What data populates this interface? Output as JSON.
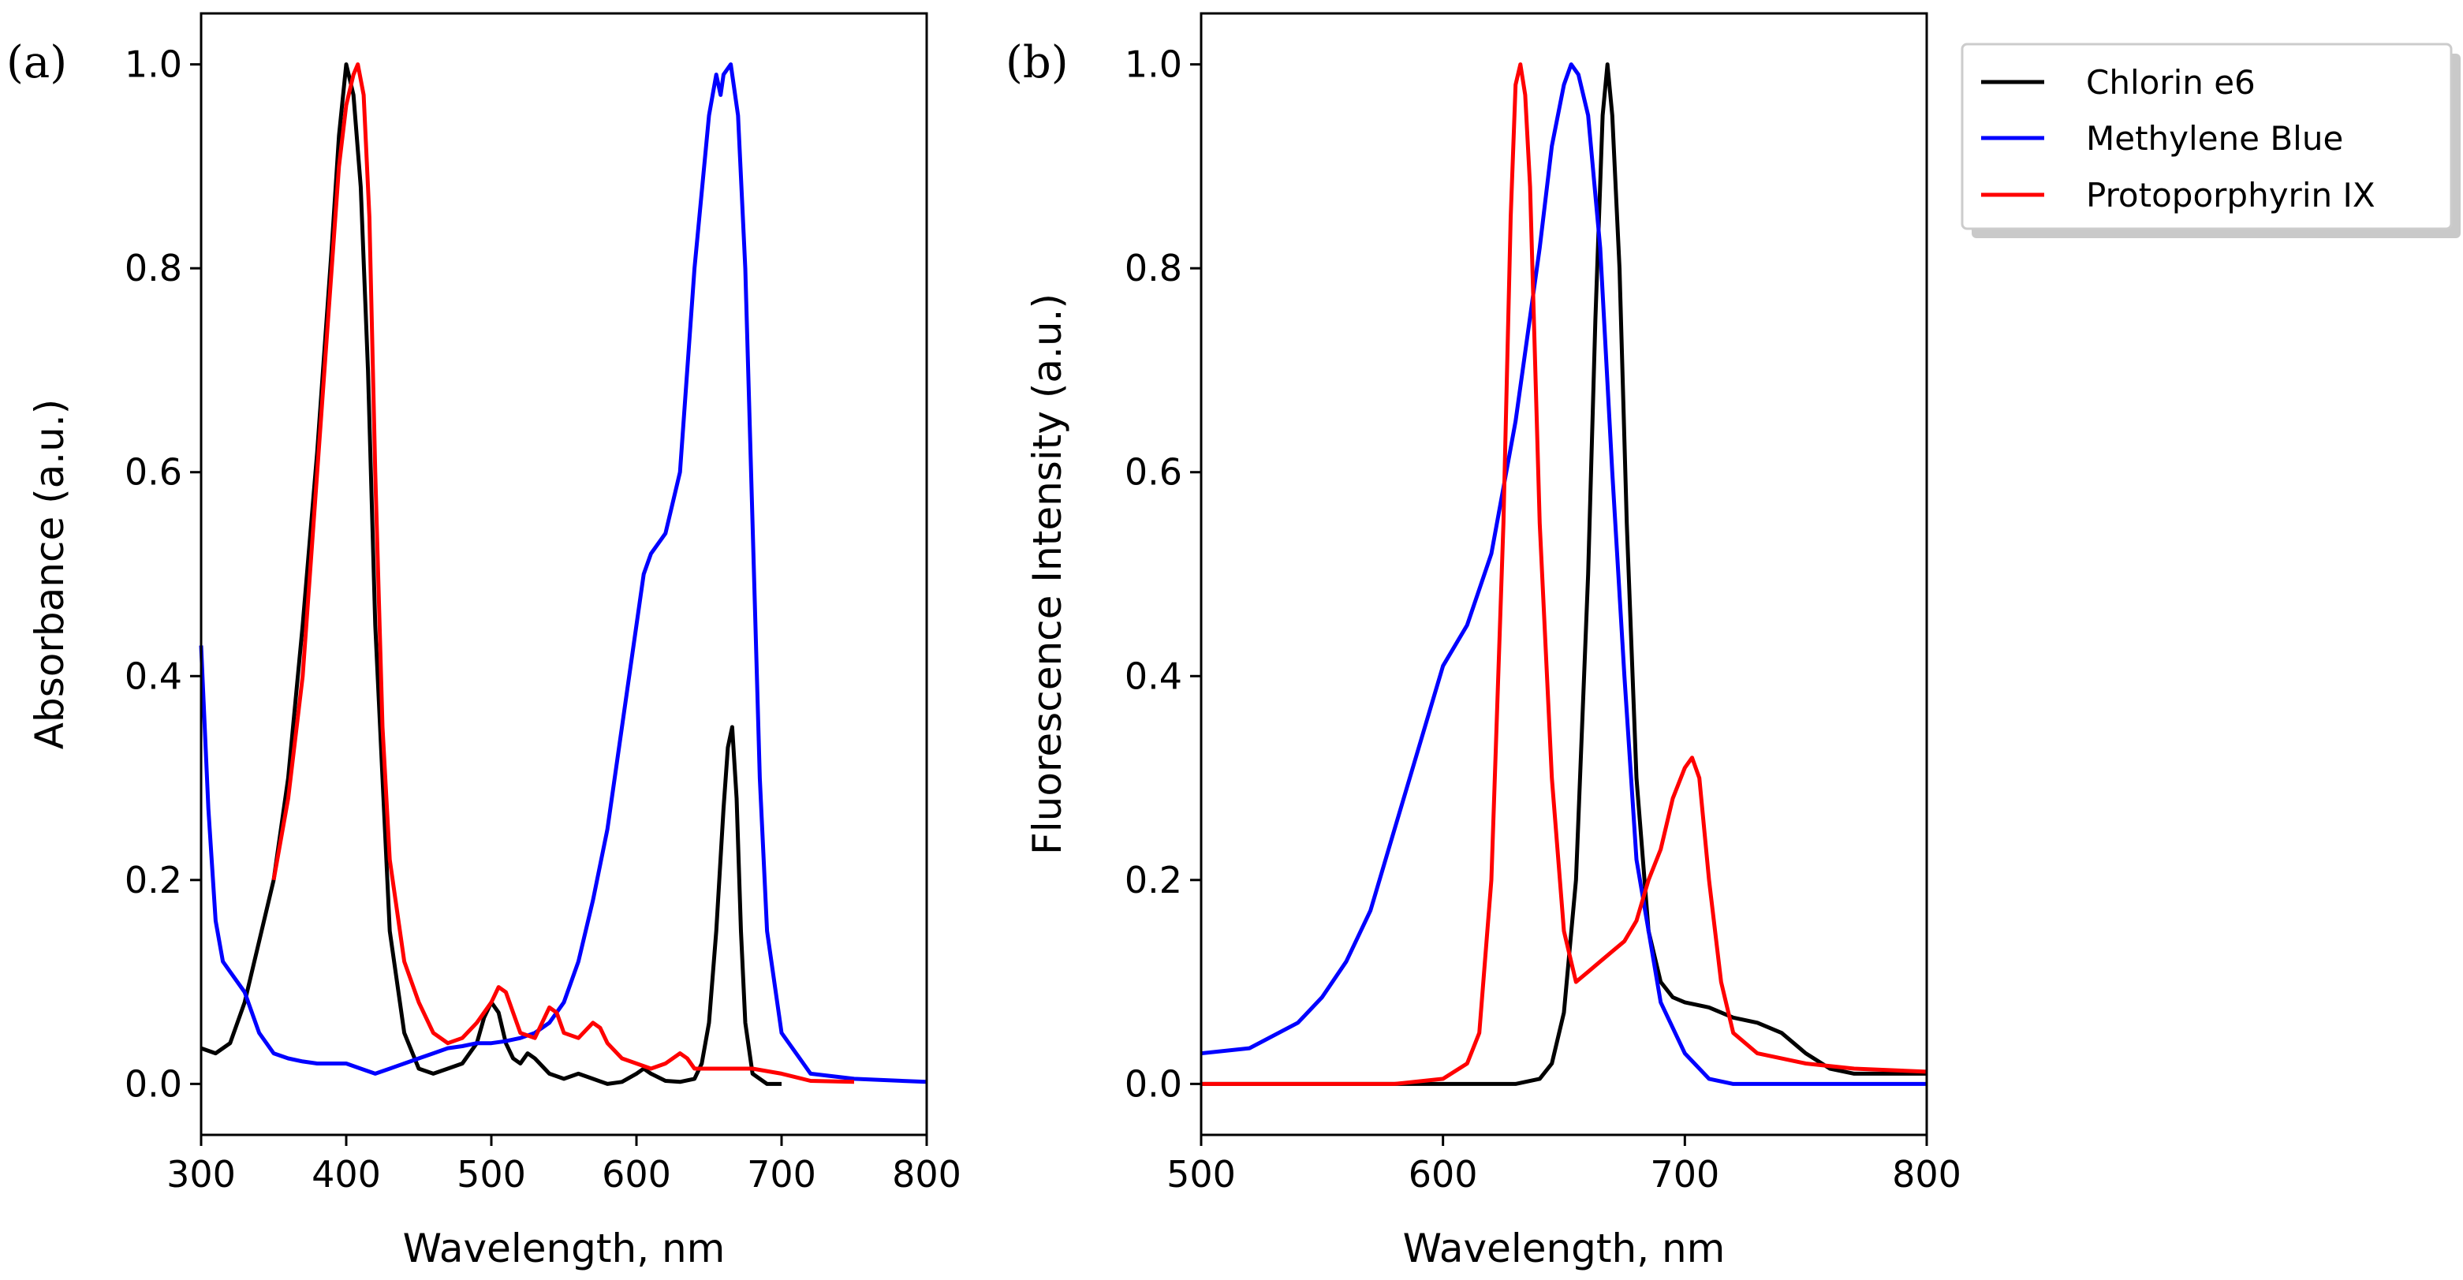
{
  "legend": {
    "entries": [
      {
        "label": "Chlorin e6",
        "color": "#000000"
      },
      {
        "label": "Methylene Blue",
        "color": "#0000ff"
      },
      {
        "label": "Protoporphyrin IX",
        "color": "#ff0000"
      }
    ]
  },
  "chart_data": [
    {
      "type": "line",
      "panel_label": "(a)",
      "xlabel": "Wavelength, nm",
      "ylabel": "Absorbance (a.u.)",
      "xlim": [
        300,
        800
      ],
      "ylim": [
        -0.05,
        1.05
      ],
      "xticks": [
        300,
        400,
        500,
        600,
        700,
        800
      ],
      "yticks": [
        0.0,
        0.2,
        0.4,
        0.6,
        0.8,
        1.0
      ],
      "xtick_labels": [
        "300",
        "400",
        "500",
        "600",
        "700",
        "800"
      ],
      "ytick_labels": [
        "0.0",
        "0.2",
        "0.4",
        "0.6",
        "0.8",
        "1.0"
      ],
      "series": [
        {
          "name": "Chlorin e6",
          "color": "#000000",
          "x": [
            300,
            310,
            320,
            330,
            340,
            350,
            360,
            370,
            380,
            390,
            395,
            400,
            405,
            410,
            415,
            420,
            430,
            440,
            450,
            460,
            470,
            480,
            490,
            495,
            500,
            505,
            510,
            515,
            520,
            525,
            530,
            540,
            550,
            560,
            570,
            580,
            590,
            600,
            605,
            610,
            620,
            630,
            640,
            645,
            650,
            655,
            660,
            663,
            666,
            669,
            672,
            675,
            680,
            690,
            700
          ],
          "y": [
            0.035,
            0.03,
            0.04,
            0.08,
            0.14,
            0.2,
            0.3,
            0.45,
            0.62,
            0.82,
            0.93,
            1.0,
            0.97,
            0.88,
            0.7,
            0.45,
            0.15,
            0.05,
            0.015,
            0.01,
            0.015,
            0.02,
            0.04,
            0.065,
            0.08,
            0.07,
            0.04,
            0.025,
            0.02,
            0.03,
            0.025,
            0.01,
            0.005,
            0.01,
            0.005,
            0.0,
            0.002,
            0.01,
            0.015,
            0.01,
            0.003,
            0.002,
            0.005,
            0.02,
            0.06,
            0.15,
            0.27,
            0.33,
            0.35,
            0.28,
            0.15,
            0.06,
            0.01,
            0.0,
            0.0
          ]
        },
        {
          "name": "Methylene Blue",
          "color": "#0000ff",
          "x": [
            300,
            305,
            310,
            315,
            320,
            330,
            340,
            350,
            360,
            370,
            380,
            390,
            400,
            410,
            420,
            430,
            440,
            450,
            460,
            470,
            480,
            490,
            500,
            510,
            520,
            530,
            540,
            550,
            560,
            570,
            580,
            590,
            600,
            605,
            610,
            620,
            630,
            640,
            650,
            655,
            658,
            660,
            665,
            670,
            675,
            680,
            685,
            690,
            700,
            720,
            750,
            800
          ],
          "y": [
            0.43,
            0.27,
            0.16,
            0.12,
            0.11,
            0.09,
            0.05,
            0.03,
            0.025,
            0.022,
            0.02,
            0.02,
            0.02,
            0.015,
            0.01,
            0.015,
            0.02,
            0.025,
            0.03,
            0.035,
            0.037,
            0.04,
            0.04,
            0.042,
            0.045,
            0.05,
            0.06,
            0.08,
            0.12,
            0.18,
            0.25,
            0.35,
            0.45,
            0.5,
            0.52,
            0.54,
            0.6,
            0.8,
            0.95,
            0.99,
            0.97,
            0.99,
            1.0,
            0.95,
            0.8,
            0.55,
            0.3,
            0.15,
            0.05,
            0.01,
            0.005,
            0.002
          ]
        },
        {
          "name": "Protoporphyrin IX",
          "color": "#ff0000",
          "x": [
            350,
            360,
            370,
            380,
            390,
            395,
            400,
            405,
            408,
            412,
            416,
            420,
            425,
            430,
            440,
            450,
            460,
            470,
            480,
            490,
            500,
            505,
            510,
            515,
            520,
            530,
            540,
            545,
            550,
            560,
            570,
            575,
            580,
            590,
            600,
            610,
            620,
            630,
            635,
            640,
            650,
            680,
            700,
            720,
            750
          ],
          "y": [
            0.2,
            0.28,
            0.4,
            0.6,
            0.8,
            0.9,
            0.96,
            0.99,
            1.0,
            0.97,
            0.85,
            0.6,
            0.35,
            0.22,
            0.12,
            0.08,
            0.05,
            0.04,
            0.045,
            0.06,
            0.08,
            0.095,
            0.09,
            0.07,
            0.05,
            0.045,
            0.075,
            0.07,
            0.05,
            0.045,
            0.06,
            0.055,
            0.04,
            0.025,
            0.02,
            0.015,
            0.02,
            0.03,
            0.025,
            0.015,
            0.015,
            0.015,
            0.01,
            0.003,
            0.002
          ]
        }
      ]
    },
    {
      "type": "line",
      "panel_label": "(b)",
      "xlabel": "Wavelength, nm",
      "ylabel": "Fluorescence Intensity (a.u.)",
      "xlim": [
        500,
        800
      ],
      "ylim": [
        -0.05,
        1.05
      ],
      "xticks": [
        500,
        600,
        700,
        800
      ],
      "yticks": [
        0.0,
        0.2,
        0.4,
        0.6,
        0.8,
        1.0
      ],
      "xtick_labels": [
        "500",
        "600",
        "700",
        "800"
      ],
      "ytick_labels": [
        "0.0",
        "0.2",
        "0.4",
        "0.6",
        "0.8",
        "1.0"
      ],
      "series": [
        {
          "name": "Chlorin e6",
          "color": "#000000",
          "x": [
            500,
            600,
            630,
            640,
            645,
            650,
            655,
            660,
            663,
            666,
            668,
            670,
            673,
            676,
            680,
            685,
            690,
            695,
            700,
            710,
            720,
            730,
            740,
            750,
            760,
            770,
            800
          ],
          "y": [
            0.0,
            0.0,
            0.0,
            0.005,
            0.02,
            0.07,
            0.2,
            0.5,
            0.75,
            0.95,
            1.0,
            0.95,
            0.8,
            0.55,
            0.3,
            0.15,
            0.1,
            0.085,
            0.08,
            0.075,
            0.065,
            0.06,
            0.05,
            0.03,
            0.015,
            0.01,
            0.01
          ]
        },
        {
          "name": "Methylene Blue",
          "color": "#0000ff",
          "x": [
            500,
            520,
            540,
            550,
            560,
            570,
            580,
            590,
            600,
            610,
            620,
            630,
            640,
            645,
            650,
            653,
            656,
            660,
            665,
            670,
            675,
            680,
            690,
            700,
            710,
            720,
            800
          ],
          "y": [
            0.03,
            0.035,
            0.06,
            0.085,
            0.12,
            0.17,
            0.25,
            0.33,
            0.41,
            0.45,
            0.52,
            0.65,
            0.82,
            0.92,
            0.98,
            1.0,
            0.99,
            0.95,
            0.82,
            0.6,
            0.4,
            0.22,
            0.08,
            0.03,
            0.005,
            0.0,
            0.0
          ]
        },
        {
          "name": "Protoporphyrin IX",
          "color": "#ff0000",
          "x": [
            500,
            580,
            600,
            610,
            615,
            620,
            625,
            628,
            630,
            632,
            634,
            636,
            640,
            645,
            650,
            655,
            660,
            665,
            670,
            675,
            680,
            685,
            690,
            695,
            700,
            703,
            706,
            710,
            715,
            720,
            730,
            750,
            770,
            800
          ],
          "y": [
            0.0,
            0.0,
            0.005,
            0.02,
            0.05,
            0.2,
            0.55,
            0.85,
            0.98,
            1.0,
            0.97,
            0.88,
            0.55,
            0.3,
            0.15,
            0.1,
            0.11,
            0.12,
            0.13,
            0.14,
            0.16,
            0.2,
            0.23,
            0.28,
            0.31,
            0.32,
            0.3,
            0.2,
            0.1,
            0.05,
            0.03,
            0.02,
            0.015,
            0.012
          ]
        }
      ]
    }
  ]
}
